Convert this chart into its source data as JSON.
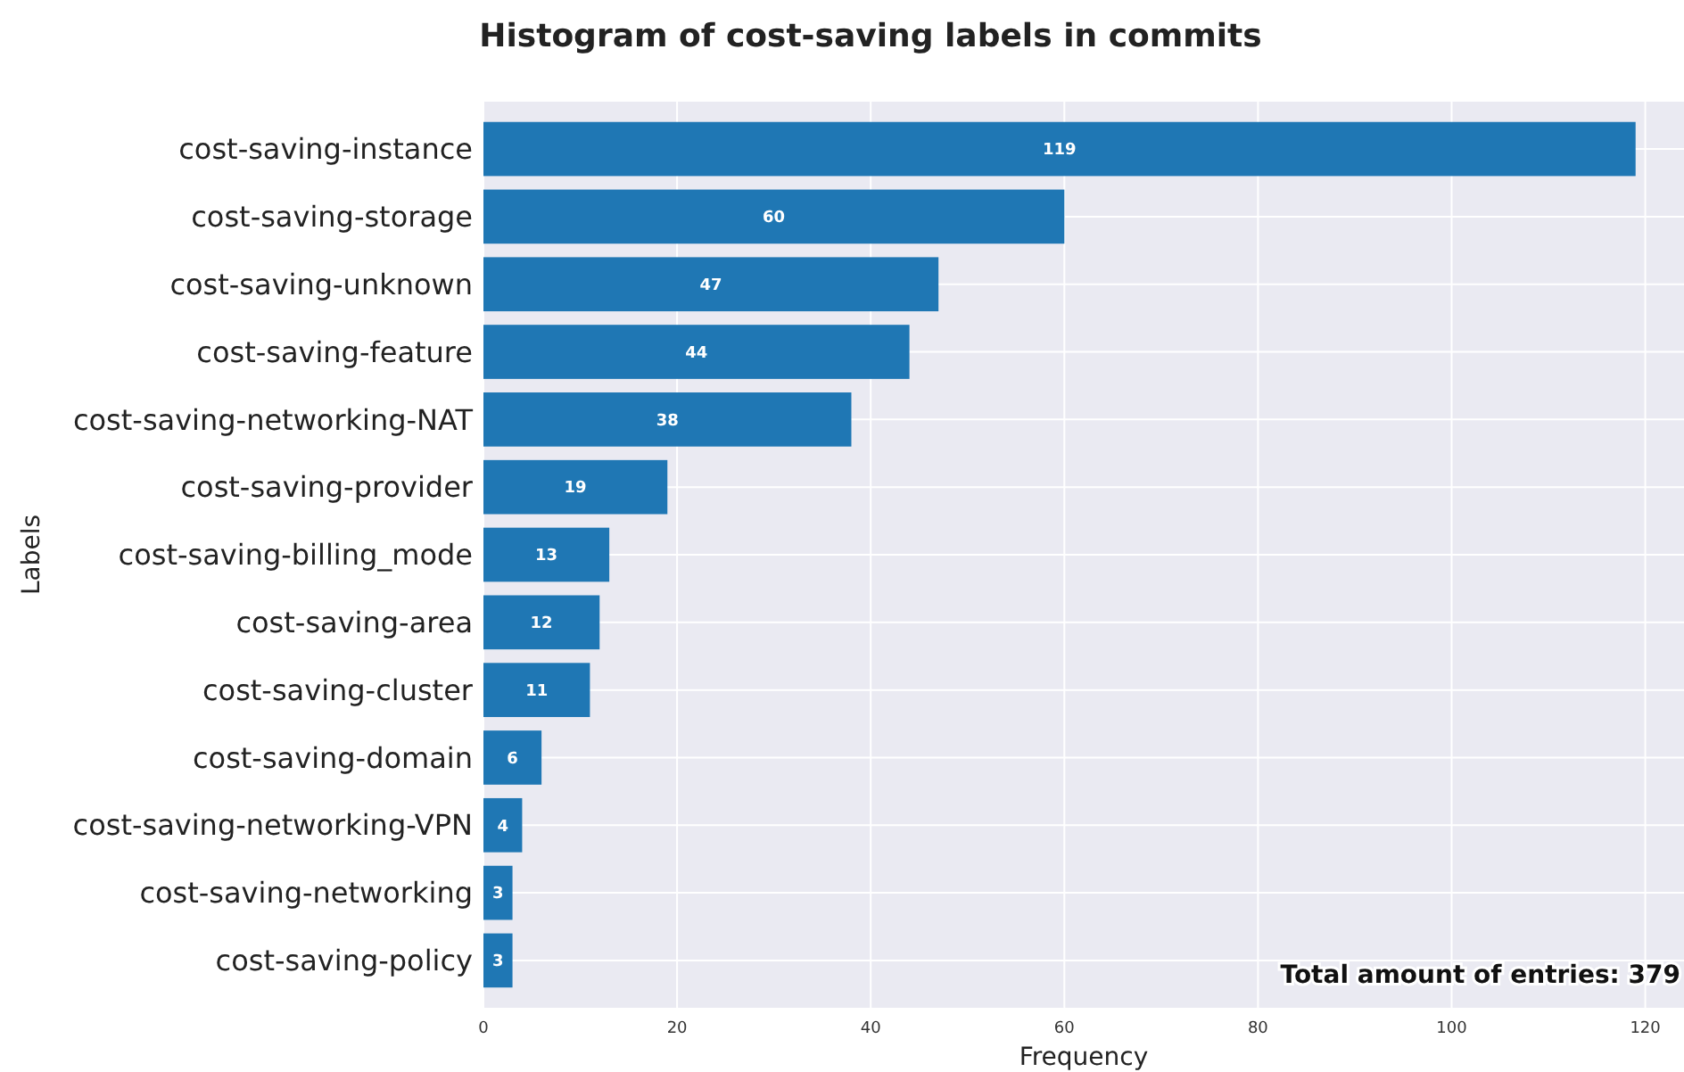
{
  "chart_data": {
    "type": "bar",
    "orientation": "horizontal",
    "title": "Histogram of cost-saving labels in commits",
    "xlabel": "Frequency",
    "ylabel": "Labels",
    "categories": [
      "cost-saving-instance",
      "cost-saving-storage",
      "cost-saving-unknown",
      "cost-saving-feature",
      "cost-saving-networking-NAT",
      "cost-saving-provider",
      "cost-saving-billing_mode",
      "cost-saving-area",
      "cost-saving-cluster",
      "cost-saving-domain",
      "cost-saving-networking-VPN",
      "cost-saving-networking",
      "cost-saving-policy"
    ],
    "values": [
      119,
      60,
      47,
      44,
      38,
      19,
      13,
      12,
      11,
      6,
      4,
      3,
      3
    ],
    "color": "#1f77b4",
    "data_labels": true,
    "xlim": [
      0,
      124
    ],
    "xticks": [
      0,
      20,
      40,
      60,
      80,
      100,
      120
    ],
    "grid": true,
    "annotations": [
      "Total amount of entries: 379"
    ]
  }
}
